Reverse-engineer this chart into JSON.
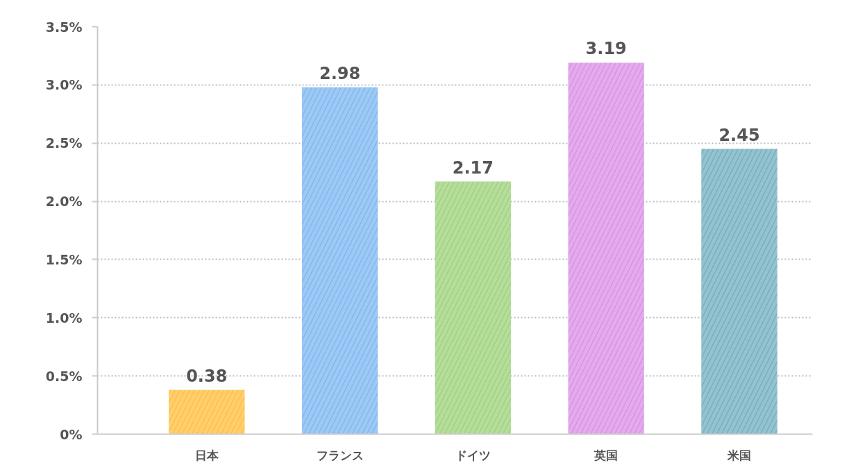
{
  "chart_data": {
    "type": "bar",
    "categories": [
      "日本",
      "フランス",
      "ドイツ",
      "英国",
      "米国"
    ],
    "values": [
      0.38,
      2.98,
      2.17,
      3.19,
      2.45
    ],
    "colors": [
      "#ffbe3f",
      "#7db7f0",
      "#9dd27b",
      "#d98fe6",
      "#70afbf"
    ],
    "data_labels": true,
    "ylim": [
      0,
      3.5
    ],
    "yticks": [
      {
        "value": 0,
        "label": "0%"
      },
      {
        "value": 0.5,
        "label": "0.5%"
      },
      {
        "value": 1,
        "label": "1.0%"
      },
      {
        "value": 1.5,
        "label": "1.5%"
      },
      {
        "value": 2,
        "label": "2.0%"
      },
      {
        "value": 2.5,
        "label": "2.5%"
      },
      {
        "value": 3,
        "label": "3.0%"
      },
      {
        "value": 3.5,
        "label": "3.5%"
      }
    ],
    "grid": "y"
  }
}
